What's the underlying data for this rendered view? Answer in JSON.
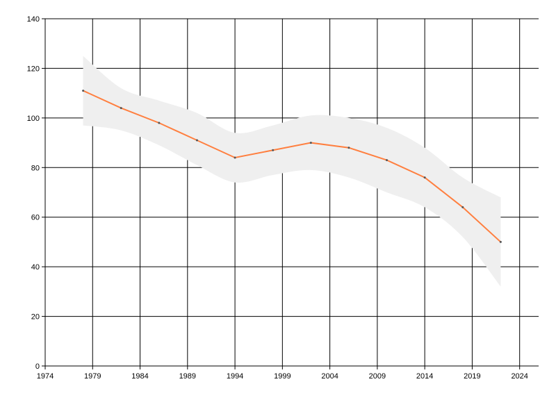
{
  "chart_data": {
    "type": "line",
    "title": "",
    "xlabel": "",
    "ylabel": "",
    "xlim": [
      1974,
      2026
    ],
    "ylim": [
      0,
      140
    ],
    "x_ticks": [
      1974,
      1979,
      1984,
      1989,
      1994,
      1999,
      2004,
      2009,
      2014,
      2019,
      2024
    ],
    "y_ticks": [
      0,
      20,
      40,
      60,
      80,
      100,
      120,
      140
    ],
    "grid": true,
    "legend": "none",
    "series": [
      {
        "x": [
          1978,
          1982,
          1986,
          1990,
          1994,
          1998,
          2002,
          2006,
          2010,
          2014,
          2018,
          2022
        ],
        "values": [
          111,
          104,
          98,
          91,
          84,
          87,
          90,
          88,
          83,
          76,
          64,
          50
        ],
        "color": "#FF7F3F"
      }
    ],
    "confidence_band": {
      "x": [
        1978,
        1982,
        1986,
        1990,
        1994,
        1998,
        2002,
        2006,
        2010,
        2014,
        2018,
        2022
      ],
      "upper": [
        125,
        112,
        107,
        102,
        94,
        97,
        101,
        100,
        96,
        88,
        76,
        68
      ],
      "lower": [
        97,
        95,
        89,
        81,
        74,
        77,
        79,
        76,
        70,
        64,
        52,
        32
      ],
      "color": "#EFEFEF"
    }
  }
}
